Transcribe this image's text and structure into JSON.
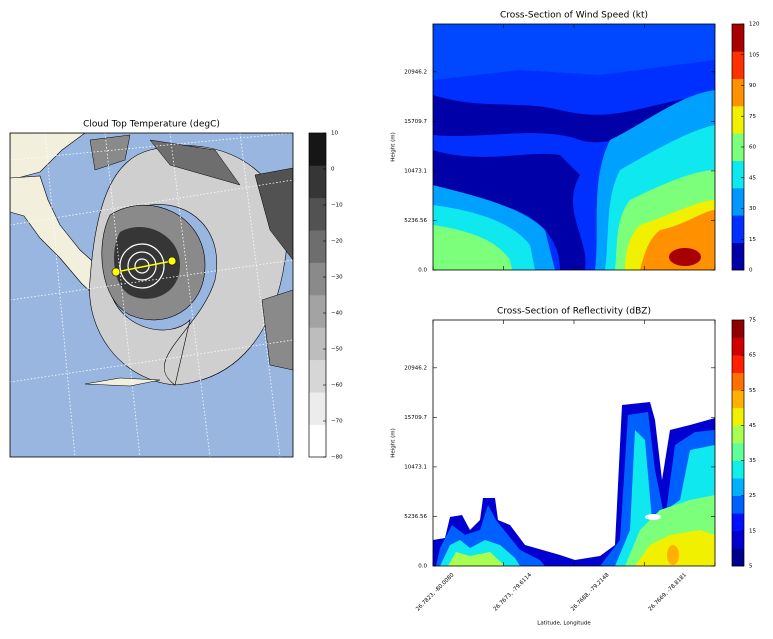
{
  "chart_data": [
    {
      "type": "map",
      "title": "Cloud Top Temperature (degC)",
      "colorbar": {
        "lim": [
          -80,
          10
        ],
        "ticks": [
          10,
          0,
          {
            "value": -10,
            "label": "−10"
          },
          {
            "value": -20,
            "label": "−20"
          },
          {
            "value": -30,
            "label": "−30"
          },
          {
            "value": -40,
            "label": "−40"
          },
          {
            "value": -50,
            "label": "−50"
          },
          {
            "value": -60,
            "label": "−60"
          },
          {
            "value": -70,
            "label": "−70"
          },
          {
            "value": -80,
            "label": "−80"
          }
        ],
        "colors": [
          "#ffffff",
          "#ececec",
          "#d6d6d6",
          "#bdbdbd",
          "#a3a3a3",
          "#8a8a8a",
          "#6e6e6e",
          "#525252",
          "#363636",
          "#161616"
        ]
      }
    },
    {
      "type": "contour",
      "title": "Cross-Section of Wind Speed (kt)",
      "ylabel": "Height (m)",
      "ylim": [
        0,
        26000
      ],
      "yticks": [
        {
          "value": 0,
          "label": "0.0"
        },
        5236.56,
        10473.1,
        15709.7,
        20946.2
      ],
      "colorbar": {
        "lim": [
          0,
          120
        ],
        "ticks": [
          0,
          15,
          30,
          45,
          60,
          75,
          90,
          105,
          120
        ],
        "colors": [
          "#0000a8",
          "#0030ff",
          "#0098ff",
          "#10e8f0",
          "#7cff7a",
          "#f0f000",
          "#ff9000",
          "#ff3000",
          "#a80000"
        ]
      }
    },
    {
      "type": "contour",
      "title": "Cross-Section of Reflectivity (dBZ)",
      "ylabel": "Height (m)",
      "xlabel": "Latitude, Longitude",
      "categories": [
        "26.7823, -80.0080",
        "26.7673, -79.6114",
        "26.7688, -79.2148",
        "26.7669, -78.8181"
      ],
      "ylim": [
        0,
        26000
      ],
      "yticks": [
        {
          "value": 0,
          "label": "0.0"
        },
        5236.56,
        10473.1,
        15709.7,
        20946.2
      ],
      "colorbar": {
        "lim": [
          5,
          75
        ],
        "ticks": [
          5,
          15,
          25,
          35,
          45,
          55,
          65,
          75
        ],
        "colors": [
          "#00008f",
          "#0000d0",
          "#0010ff",
          "#0060ff",
          "#00b0ff",
          "#10f0e8",
          "#60ff98",
          "#a8ff50",
          "#f0f000",
          "#ffb000",
          "#ff7000",
          "#ff2000",
          "#d00000",
          "#900000"
        ]
      }
    }
  ]
}
